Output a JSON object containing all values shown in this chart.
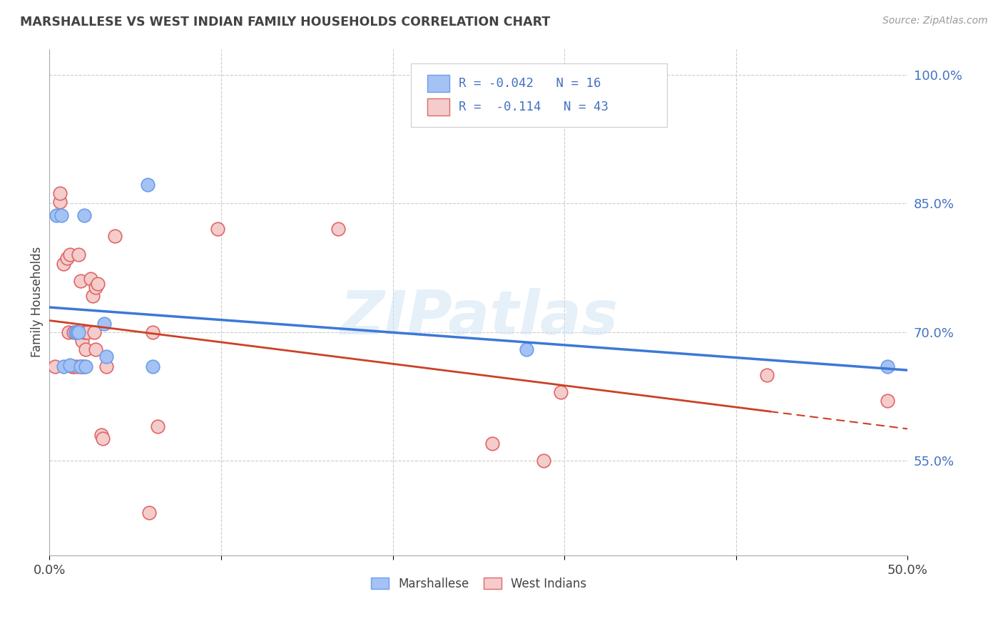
{
  "title": "MARSHALLESE VS WEST INDIAN FAMILY HOUSEHOLDS CORRELATION CHART",
  "source": "Source: ZipAtlas.com",
  "ylabel": "Family Households",
  "watermark": "ZIPatlas",
  "xlim": [
    0.0,
    0.5
  ],
  "ylim": [
    0.44,
    1.03
  ],
  "xticks": [
    0.0,
    0.1,
    0.2,
    0.3,
    0.4,
    0.5
  ],
  "xtick_labels": [
    "0.0%",
    "",
    "",
    "",
    "",
    "50.0%"
  ],
  "ytick_labels_right": [
    "100.0%",
    "85.0%",
    "70.0%",
    "55.0%"
  ],
  "ytick_vals_right": [
    1.0,
    0.85,
    0.7,
    0.55
  ],
  "legend_label1": "Marshallese",
  "legend_label2": "West Indians",
  "R1": "-0.042",
  "N1": "16",
  "R2": "-0.114",
  "N2": "43",
  "marshallese_x": [
    0.004,
    0.007,
    0.008,
    0.012,
    0.015,
    0.016,
    0.017,
    0.018,
    0.02,
    0.021,
    0.032,
    0.033,
    0.057,
    0.06,
    0.278,
    0.488
  ],
  "marshallese_y": [
    0.836,
    0.836,
    0.66,
    0.662,
    0.7,
    0.7,
    0.7,
    0.66,
    0.836,
    0.66,
    0.71,
    0.672,
    0.872,
    0.66,
    0.68,
    0.66
  ],
  "west_indians_x": [
    0.003,
    0.006,
    0.006,
    0.008,
    0.01,
    0.011,
    0.012,
    0.013,
    0.014,
    0.014,
    0.015,
    0.016,
    0.016,
    0.017,
    0.018,
    0.018,
    0.019,
    0.019,
    0.02,
    0.02,
    0.021,
    0.021,
    0.022,
    0.024,
    0.025,
    0.026,
    0.027,
    0.027,
    0.028,
    0.03,
    0.031,
    0.033,
    0.038,
    0.058,
    0.06,
    0.063,
    0.098,
    0.168,
    0.258,
    0.288,
    0.298,
    0.418,
    0.488
  ],
  "west_indians_y": [
    0.66,
    0.852,
    0.862,
    0.78,
    0.786,
    0.7,
    0.79,
    0.66,
    0.7,
    0.66,
    0.7,
    0.66,
    0.7,
    0.79,
    0.76,
    0.66,
    0.66,
    0.69,
    0.66,
    0.7,
    0.68,
    0.7,
    0.7,
    0.762,
    0.742,
    0.7,
    0.68,
    0.752,
    0.756,
    0.58,
    0.576,
    0.66,
    0.812,
    0.49,
    0.7,
    0.59,
    0.82,
    0.82,
    0.57,
    0.55,
    0.63,
    0.65,
    0.62
  ],
  "blue_color": "#a4c2f4",
  "pink_color": "#f4cccc",
  "blue_dot_edge": "#6d9eeb",
  "pink_dot_edge": "#e06666",
  "blue_line_color": "#3c78d8",
  "pink_line_color": "#cc4125",
  "grid_color": "#cccccc",
  "background_color": "#ffffff",
  "title_color": "#434343",
  "axis_label_color": "#434343",
  "right_tick_color": "#4472c4",
  "source_color": "#999999"
}
